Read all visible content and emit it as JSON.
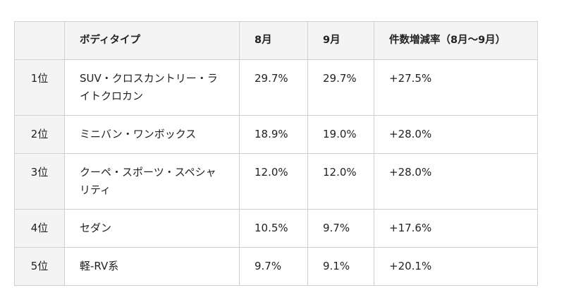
{
  "table": {
    "headers": [
      "",
      "ボディタイプ",
      "8月",
      "9月",
      "件数増減率（8月〜9月）"
    ],
    "rows": [
      {
        "rank": "1位",
        "body_type": "SUV・クロスカントリー・ライトクロカン",
        "aug": "29.7%",
        "sep": "29.7%",
        "change": "+27.5%"
      },
      {
        "rank": "2位",
        "body_type": "ミニバン・ワンボックス",
        "aug": "18.9%",
        "sep": "19.0%",
        "change": "+28.0%"
      },
      {
        "rank": "3位",
        "body_type": "クーペ・スポーツ・スペシャリティ",
        "aug": "12.0%",
        "sep": "12.0%",
        "change": "+28.0%"
      },
      {
        "rank": "4位",
        "body_type": "セダン",
        "aug": "10.5%",
        "sep": "9.7%",
        "change": "+17.6%"
      },
      {
        "rank": "5位",
        "body_type": "軽-RV系",
        "aug": "9.7%",
        "sep": "9.1%",
        "change": "+20.1%"
      }
    ]
  }
}
